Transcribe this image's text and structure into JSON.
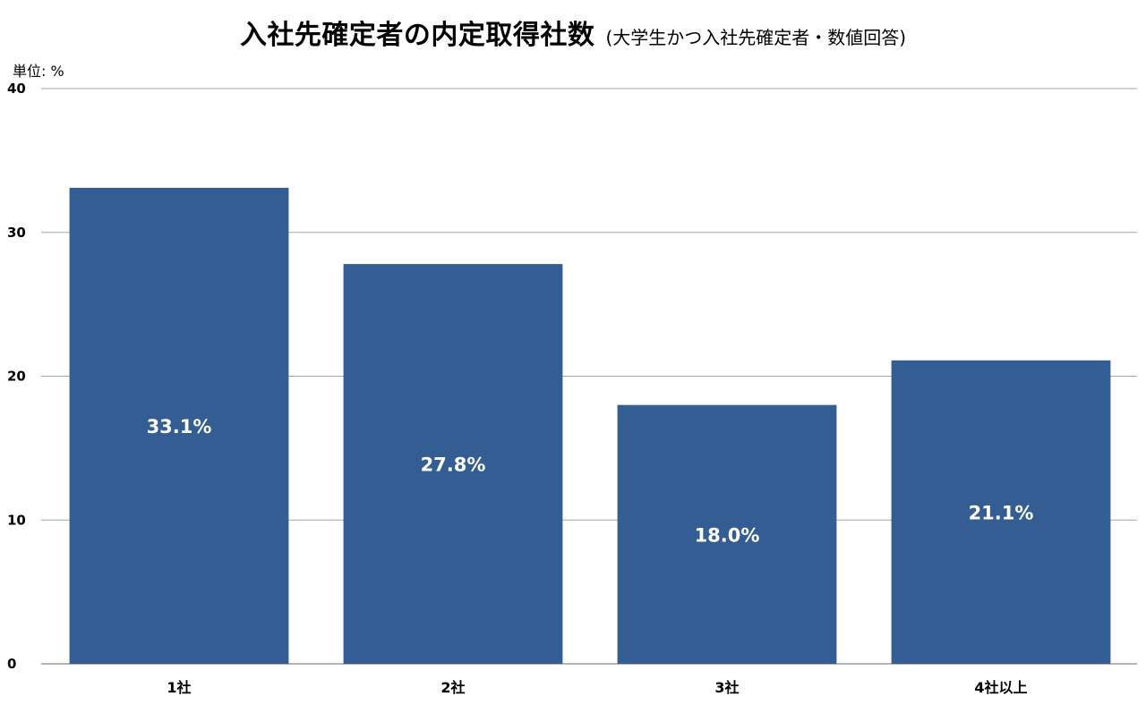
{
  "chart_data": {
    "type": "bar",
    "title": "入社先確定者の内定取得社数",
    "subtitle": "(大学生かつ入社先確定者・数値回答)",
    "unit_label": "単位: %",
    "categories": [
      "1社",
      "2社",
      "3社",
      "4社以上"
    ],
    "values": [
      33.1,
      27.8,
      18.0,
      21.1
    ],
    "data_labels": [
      "33.1%",
      "27.8%",
      "18.0%",
      "21.1%"
    ],
    "yticks": [
      0,
      10,
      20,
      30,
      40
    ],
    "ylim": [
      0,
      40
    ],
    "grid": true,
    "legend": "none",
    "bar_color": "#345d94",
    "grid_color": "#a6a6a6"
  }
}
